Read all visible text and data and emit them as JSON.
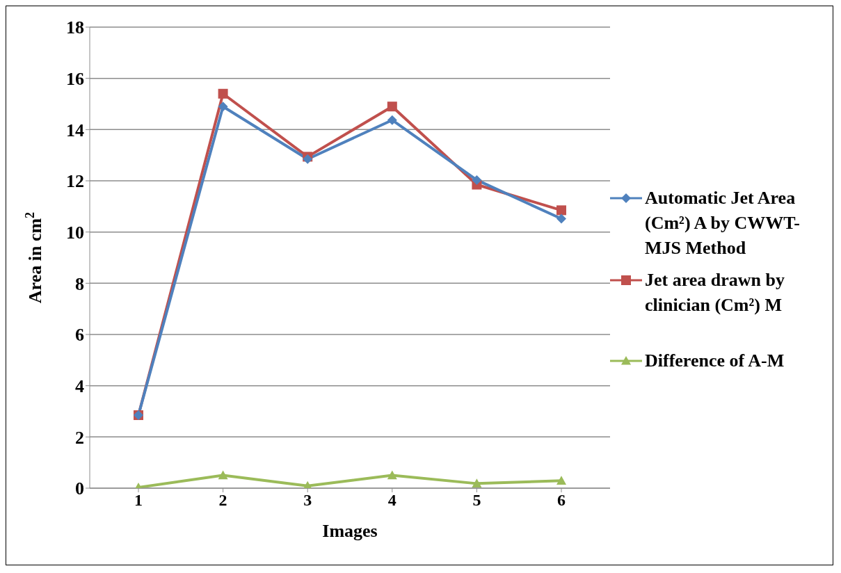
{
  "chart_data": {
    "type": "line",
    "xlabel": "Images",
    "ylabel": "Area in cm$^{2}$",
    "categories": [
      "1",
      "2",
      "3",
      "4",
      "5",
      "6"
    ],
    "series": [
      {
        "name": "Automatic Jet Area (Cm²) A by CWWT-MJS Method",
        "color": "#4f81bd",
        "marker": "diamond",
        "values": [
          2.85,
          14.9,
          12.85,
          14.37,
          12.03,
          10.52
        ]
      },
      {
        "name": "Jet area drawn by clinician (Cm²) M",
        "color": "#c0504d",
        "marker": "square",
        "values": [
          2.85,
          15.4,
          12.94,
          14.9,
          11.85,
          10.85
        ]
      },
      {
        "name": "Difference of  A-M",
        "color": "#9bbb59",
        "marker": "triangle",
        "values": [
          0.03,
          0.5,
          0.09,
          0.5,
          0.18,
          0.29
        ]
      }
    ],
    "ylim": [
      0,
      18
    ],
    "yticks": [
      0,
      2,
      4,
      6,
      8,
      10,
      12,
      14,
      16,
      18
    ],
    "grid": "y",
    "legend": "right"
  }
}
